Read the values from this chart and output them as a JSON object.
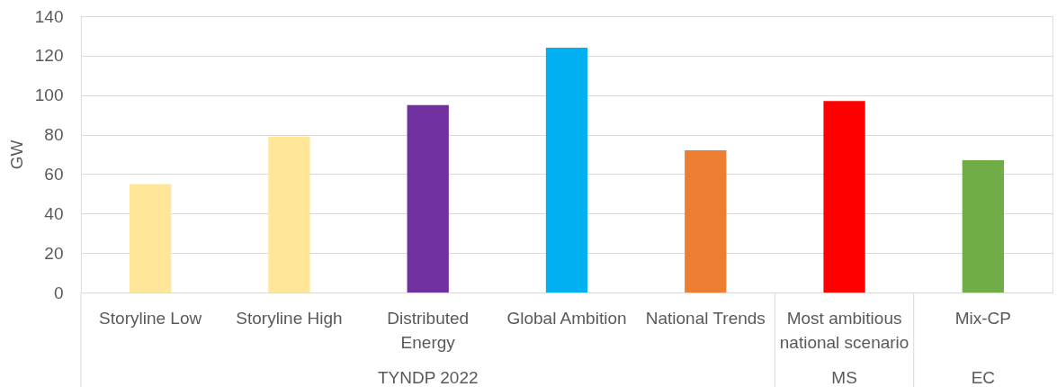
{
  "chart_data": {
    "type": "bar",
    "ylabel": "GW",
    "categories": [
      "Storyline Low",
      "Storyline High",
      "Distributed Energy",
      "Global Ambition",
      "National Trends",
      "Most ambitious national scenario",
      "Mix-CP"
    ],
    "values": [
      55,
      79,
      95,
      124,
      72,
      97,
      67
    ],
    "colors": [
      "#ffe699",
      "#ffe699",
      "#7030a0",
      "#00b0f0",
      "#ed7d31",
      "#ff0000",
      "#70ad47"
    ],
    "ylim": [
      0,
      140
    ],
    "yticks": [
      0,
      20,
      40,
      60,
      80,
      100,
      120,
      140
    ],
    "grid": "y",
    "annotations": [
      "TYNDP 2022",
      "MS",
      "EC"
    ]
  }
}
